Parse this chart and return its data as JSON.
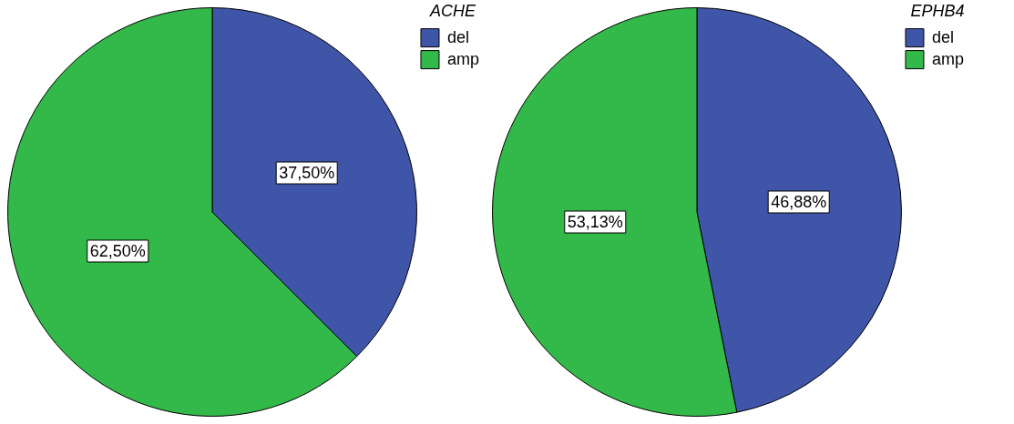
{
  "chart_data": [
    {
      "type": "pie",
      "legend_title": "ACHE",
      "categories": [
        "del",
        "amp"
      ],
      "values": [
        37.5,
        62.5
      ],
      "colors": [
        "#3f56a8",
        "#33b84a"
      ],
      "value_labels": [
        "37,50%",
        "62,50%"
      ],
      "legend": "top right"
    },
    {
      "type": "pie",
      "legend_title": "EPHB4",
      "categories": [
        "del",
        "amp"
      ],
      "values": [
        46.88,
        53.13
      ],
      "colors": [
        "#3f56a8",
        "#33b84a"
      ],
      "value_labels": [
        "46,88%",
        "53,13%"
      ],
      "legend": "top right"
    }
  ]
}
